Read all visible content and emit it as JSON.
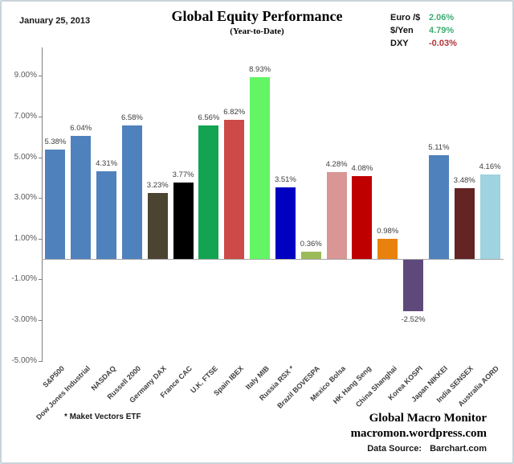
{
  "header": {
    "date": "January 25, 2013",
    "title": "Global Equity Performance",
    "subtitle": "(Year-to-Date)",
    "fx": [
      {
        "label": "Euro /$",
        "value": "2.06%",
        "color": "#3CAE71"
      },
      {
        "label": "$/Yen",
        "value": "4.79%",
        "color": "#3CAE71"
      },
      {
        "label": "DXY",
        "value": "-0.03%",
        "color": "#B13437"
      }
    ]
  },
  "chart_data": {
    "type": "bar",
    "title": "Global Equity Performance (Year-to-Date)",
    "categories": [
      "S&P500",
      "Dow Jones Industrial",
      "NASDAQ",
      "Russell 2000",
      "Germany DAX",
      "France CAC",
      "U.K. FTSE",
      "Spain IBEX",
      "Italy MIB",
      "Russia RSX *",
      "Brazil BOVESPA",
      "Mexico Bolsa",
      "HK Hang Seng",
      "China Shanghai",
      "Korea KOSPI",
      "Japan NIKKEI",
      "India SENSEX",
      "Australia AORD"
    ],
    "values": [
      5.38,
      6.04,
      4.31,
      6.58,
      3.23,
      3.77,
      6.56,
      6.82,
      8.93,
      3.51,
      0.36,
      4.28,
      4.08,
      0.98,
      -2.52,
      5.11,
      3.48,
      4.16
    ],
    "value_labels": [
      "5.38%",
      "6.04%",
      "4.31%",
      "6.58%",
      "3.23%",
      "3.77%",
      "6.56%",
      "6.82%",
      "8.93%",
      "3.51%",
      "0.36%",
      "4.28%",
      "4.08%",
      "0.98%",
      "-2.52%",
      "5.11%",
      "3.48%",
      "4.16%"
    ],
    "bar_colors": [
      "#4F81BD",
      "#4F81BD",
      "#4F81BD",
      "#4F81BD",
      "#4A4430",
      "#000000",
      "#12A452",
      "#CC4A47",
      "#63F563",
      "#0000C0",
      "#9BBB59",
      "#D99694",
      "#C00000",
      "#E8810D",
      "#5F497A",
      "#4F81BD",
      "#632423",
      "#9FD3DF"
    ],
    "y_ticks": [
      9,
      7,
      5,
      3,
      1,
      -1,
      -3,
      -5
    ],
    "y_tick_labels": [
      "9.00%",
      "7.00%",
      "5.00%",
      "3.00%",
      "1.00%",
      "-1.00%",
      "-3.00%",
      "-5.00%"
    ],
    "ylim": [
      -5,
      10.4
    ],
    "xlabel": "",
    "ylabel": "",
    "grid": false,
    "legend": "none"
  },
  "footer": {
    "footnote": "* Maket  Vectors ETF",
    "brand_line1": "Global Macro Monitor",
    "brand_line2": "macromon.wordpress.com",
    "source_label": "Data Source:",
    "source_value": "Barchart.com"
  }
}
